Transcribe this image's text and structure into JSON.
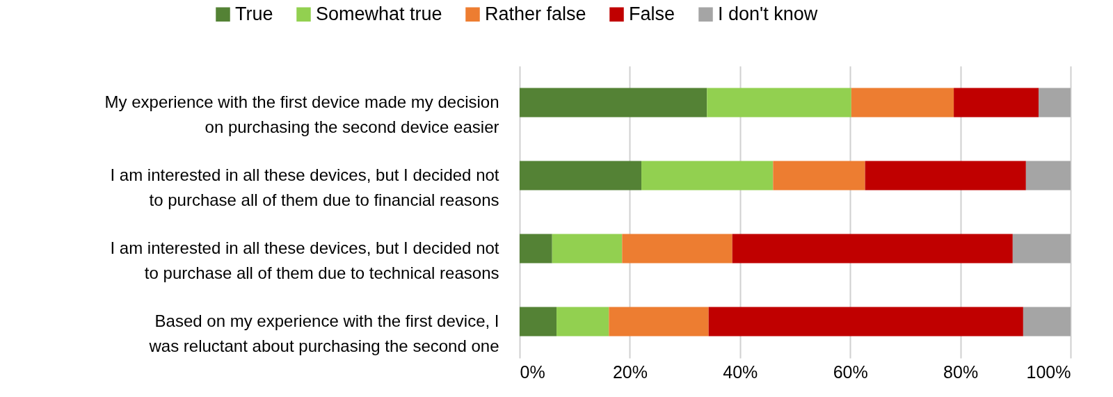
{
  "chart_data": {
    "type": "bar",
    "orientation": "horizontal",
    "stacked": true,
    "categories": [
      "My experience with the first device made my decision on purchasing the second device easier",
      "I am interested in all these devices, but I decided not to purchase all of them due to financial reasons",
      "I am interested in all these devices, but I decided not to purchase all of them due to technical reasons",
      "Based on my experience with the first device, I was reluctant about purchasing the second one"
    ],
    "series": [
      {
        "name": "True",
        "color": "#548235",
        "values": [
          34.0,
          22.1,
          5.9,
          6.7
        ]
      },
      {
        "name": "Somewhat true",
        "color": "#92d050",
        "values": [
          26.2,
          23.9,
          12.7,
          9.5
        ]
      },
      {
        "name": "Rather false",
        "color": "#ed7d31",
        "values": [
          18.6,
          16.7,
          20.0,
          18.1
        ]
      },
      {
        "name": "False",
        "color": "#c00000",
        "values": [
          15.4,
          29.2,
          50.9,
          57.1
        ]
      },
      {
        "name": "I don't know",
        "color": "#a5a5a5",
        "values": [
          5.8,
          8.1,
          10.5,
          8.6
        ]
      }
    ],
    "xlim": [
      0,
      100
    ],
    "xticks": [
      {
        "value": 0,
        "label": "0%"
      },
      {
        "value": 20,
        "label": "20%"
      },
      {
        "value": 40,
        "label": "40%"
      },
      {
        "value": 60,
        "label": "60%"
      },
      {
        "value": 80,
        "label": "80%"
      },
      {
        "value": 100,
        "label": "100%"
      }
    ],
    "grid": "x",
    "legend": "top"
  }
}
